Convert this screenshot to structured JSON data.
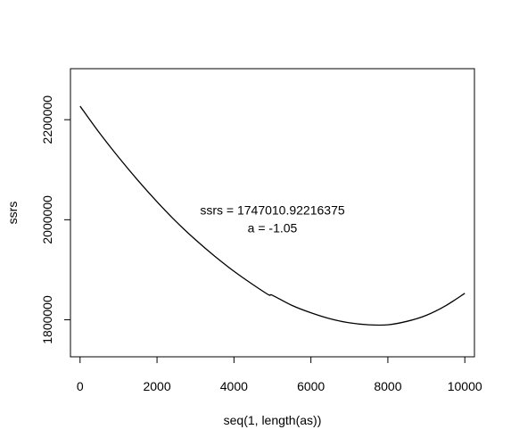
{
  "chart_data": {
    "type": "line",
    "title": "",
    "xlabel": "seq(1, length(as))",
    "ylabel": "ssrs",
    "xlim": [
      -250,
      10250
    ],
    "ylim": [
      1726000,
      2302000
    ],
    "x_ticks": [
      0,
      2000,
      4000,
      6000,
      8000,
      10000
    ],
    "x_tick_labels": [
      "0",
      "2000",
      "4000",
      "6000",
      "8000",
      "10000"
    ],
    "y_ticks": [
      1800000,
      2000000,
      2200000
    ],
    "y_tick_labels": [
      "1800000",
      "2000000",
      "2200000"
    ],
    "grid": false,
    "legend": "none",
    "line_color": "#000000",
    "series": [
      {
        "x": [
          1,
          500,
          1000,
          1500,
          2000,
          2500,
          3000,
          3500,
          4000,
          4500,
          4900,
          5000,
          5500,
          6000,
          6500,
          7000,
          7500,
          8000,
          8500,
          9000,
          9500,
          10000
        ],
        "y": [
          2227000,
          2174000,
          2125000,
          2079000,
          2036000,
          1996000,
          1960000,
          1927000,
          1897000,
          1870000,
          1850000,
          1849000,
          1829000,
          1814000,
          1802000,
          1794000,
          1790000,
          1790000,
          1797000,
          1809000,
          1828000,
          1853000
        ],
        "_note_removed": ""
      }
    ],
    "annotations": [
      {
        "text": "ssrs =  1747010.92216375",
        "x": 5000,
        "y": 2010000
      },
      {
        "text": "a =  -1.05",
        "x": 5000,
        "y": 1975000
      }
    ]
  }
}
